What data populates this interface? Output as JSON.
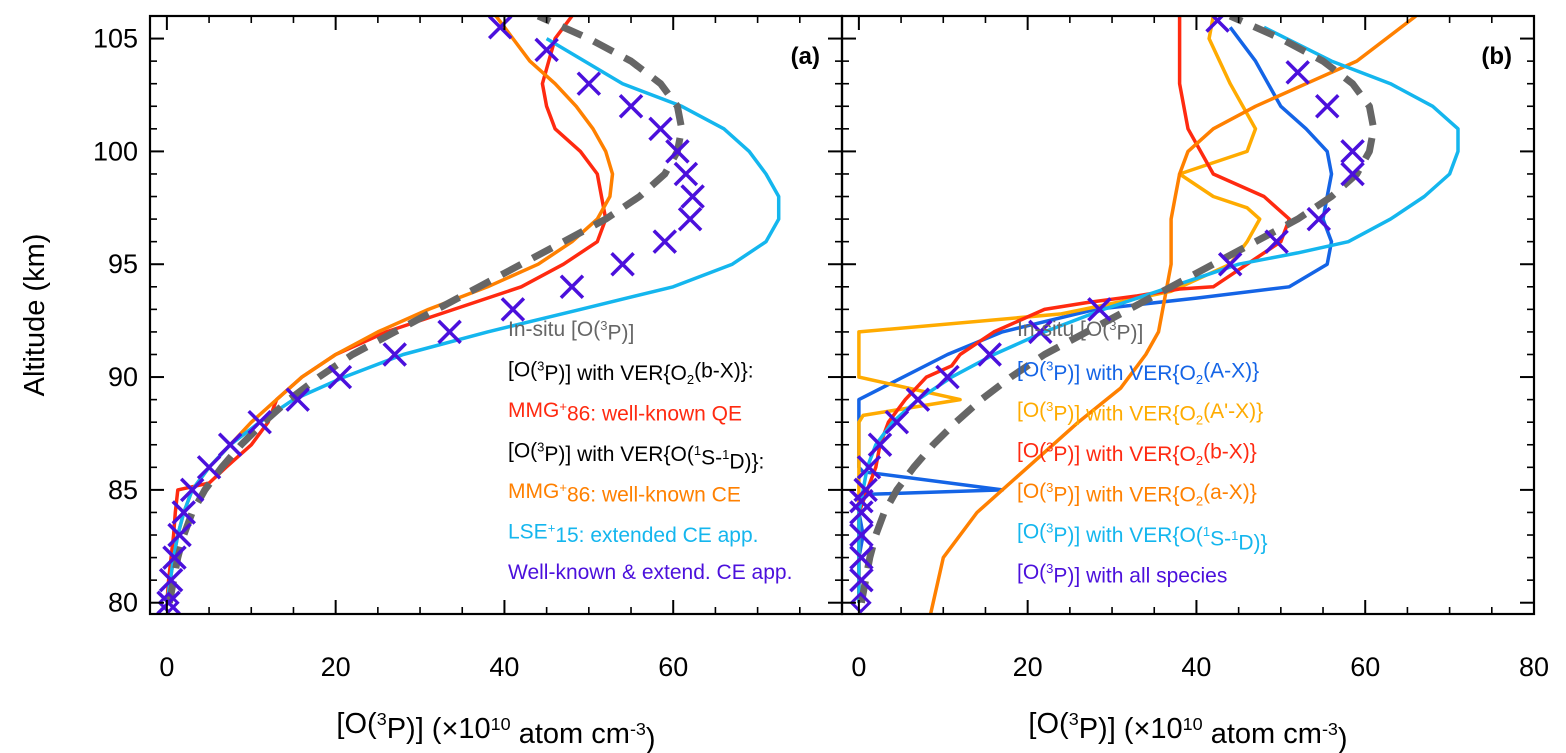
{
  "chart_data": [
    {
      "type": "line",
      "panel_label": "(a)",
      "xlabel": "[O(3P)] (×1010 atom cm-3)",
      "ylabel": "Altitude (km)",
      "xlim": [
        -2,
        80
      ],
      "ylim": [
        79.5,
        106
      ],
      "xticks": [
        "0",
        "20",
        "40",
        "60"
      ],
      "yticks": [
        "80",
        "85",
        "90",
        "95",
        "100",
        "105"
      ],
      "legend_position": "lower-right",
      "legend": [
        {
          "label": "In-situ [O(3P)]",
          "color": "#666666"
        },
        {
          "label": "[O(3P)] with VER{O2(b-X)}:",
          "color": "#000000"
        },
        {
          "label": "MMG+86: well-known QE",
          "color": "#ff2a10"
        },
        {
          "label": "[O(3P)] with VER{O(1S-1D)}:",
          "color": "#000000"
        },
        {
          "label": "MMG+86: well-known CE",
          "color": "#ff8000"
        },
        {
          "label": "LSE+15: extended CE app.",
          "color": "#14b6ee"
        },
        {
          "label": "Well-known & extend. CE app.",
          "color": "#4b10dc"
        }
      ],
      "series": [
        {
          "name": "In-situ [O(3P)]",
          "style": "dashed",
          "color": "#666666",
          "x": [
            0.3,
            0.8,
            1.3,
            2,
            3,
            4.5,
            6.5,
            8.8,
            11.5,
            14.5,
            18,
            22,
            27,
            32,
            37,
            42,
            47,
            52,
            56,
            59,
            60.5,
            61,
            60.5,
            58.5,
            55,
            50,
            44
          ],
          "y": [
            80,
            81,
            82,
            83,
            84,
            85,
            86,
            87,
            88,
            89,
            90,
            91,
            92,
            93,
            94,
            95,
            96,
            97,
            98,
            99,
            100,
            101,
            102,
            103,
            104,
            105,
            106
          ]
        },
        {
          "name": "MMG+86: well-known QE",
          "style": "solid",
          "color": "#ff2a10",
          "x": [
            0,
            0.2,
            0.5,
            0.8,
            1,
            1.3,
            5,
            7,
            10,
            12,
            13,
            16,
            20,
            26,
            34,
            42,
            47,
            51,
            52,
            51.5,
            51,
            49,
            46,
            45,
            44.5,
            46,
            48
          ],
          "y": [
            80,
            81,
            82,
            83,
            84,
            85,
            85.3,
            86,
            87,
            88,
            89,
            90,
            91,
            92,
            93,
            94,
            95,
            96,
            97,
            98,
            99,
            100,
            101,
            102,
            103,
            105,
            106
          ]
        },
        {
          "name": "MMG+86: well-known CE",
          "style": "solid",
          "color": "#ff8000",
          "x": [
            0,
            0.4,
            0.8,
            1.3,
            2,
            3,
            5,
            7.5,
            10,
            13,
            16,
            20,
            25,
            31,
            38,
            44,
            48,
            51,
            52.5,
            52.8,
            52,
            50.5,
            48.5,
            46,
            43,
            39
          ],
          "y": [
            80,
            81,
            82,
            83,
            84,
            85,
            86,
            87,
            88,
            89,
            90,
            91,
            92,
            93,
            94,
            95,
            96,
            97,
            98,
            99,
            100,
            101,
            102,
            103,
            104,
            106
          ]
        },
        {
          "name": "LSE+15: extended CE app.",
          "style": "solid",
          "color": "#14b6ee",
          "x": [
            0,
            0.4,
            0.8,
            1.3,
            2,
            3,
            5,
            7.5,
            11,
            15,
            21,
            28,
            38,
            49,
            60,
            67,
            71,
            72.5,
            72.5,
            71,
            69,
            66,
            61,
            54,
            45
          ],
          "y": [
            80,
            81,
            82,
            83,
            84,
            85,
            86,
            87,
            88,
            89,
            90,
            91,
            92,
            93,
            94,
            95,
            96,
            97,
            98,
            99,
            100,
            101,
            102,
            103,
            105
          ]
        },
        {
          "name": "Well-known & extend. CE app.",
          "style": "markers",
          "marker": "x",
          "color": "#4b10dc",
          "x": [
            0.2,
            0.5,
            0.9,
            1.5,
            2,
            3,
            5,
            7.5,
            11,
            15.5,
            20.5,
            27,
            33.5,
            41,
            48,
            54,
            59,
            62,
            62.3,
            61.5,
            60.5,
            58.5,
            55,
            50,
            45,
            39.5
          ],
          "y": [
            80,
            81,
            82,
            83,
            84,
            85,
            86,
            87,
            88,
            89,
            90,
            91,
            92,
            93,
            94,
            95,
            96,
            97,
            98,
            99,
            100,
            101,
            102,
            103,
            104.5,
            105.5
          ]
        },
        {
          "name": "Well-known & extend. CE app.",
          "style": "markers",
          "marker": "diamond",
          "color": "#4b10dc",
          "x": [
            0.2
          ],
          "y": [
            80
          ]
        }
      ]
    },
    {
      "type": "line",
      "panel_label": "(b)",
      "xlabel": "[O(3P)] (×1010 atom cm-3)",
      "xlim": [
        -2,
        80
      ],
      "ylim": [
        79.5,
        106
      ],
      "xticks": [
        "0",
        "20",
        "40",
        "60",
        "80"
      ],
      "legend_position": "lower-right",
      "legend": [
        {
          "label": "In-situ [O(3P)]",
          "color": "#666666"
        },
        {
          "label": "[O(3P)] with VER{O2(A-X)}",
          "color": "#1464e6"
        },
        {
          "label": "[O(3P)] with VER{O2(A'-X)}",
          "color": "#ffab00"
        },
        {
          "label": "[O(3P)] with VER{O2(b-X)}",
          "color": "#ff2a10"
        },
        {
          "label": "[O(3P)] with VER{O2(a-X)}",
          "color": "#ff8000"
        },
        {
          "label": "[O(3P)] with VER{O(1S-1D)}",
          "color": "#14b6ee"
        },
        {
          "label": "[O(3P)] with all species",
          "color": "#4b10dc"
        }
      ],
      "series": [
        {
          "name": "In-situ [O(3P)]",
          "style": "dashed",
          "color": "#666666",
          "x": [
            0.3,
            0.8,
            1.3,
            2,
            3,
            4.5,
            6.5,
            8.8,
            11.5,
            14.5,
            18,
            22,
            27,
            32,
            37,
            42,
            47,
            52,
            56,
            59,
            60.5,
            61,
            60.5,
            58.5,
            55,
            50,
            44
          ],
          "y": [
            80,
            81,
            82,
            83,
            84,
            85,
            86,
            87,
            88,
            89,
            90,
            91,
            92,
            93,
            94,
            95,
            96,
            97,
            98,
            99,
            100,
            101,
            102,
            103,
            104,
            105,
            106
          ]
        },
        {
          "name": "[O(3P)] with VER{O2(A-X)}",
          "style": "solid",
          "color": "#1464e6",
          "x": [
            0,
            0,
            0,
            0.5,
            0,
            0.8,
            17,
            0.5,
            0,
            0,
            0,
            0,
            10.5,
            17,
            28,
            40,
            51,
            55.5,
            56,
            55,
            55.5,
            56,
            55.5,
            53,
            50,
            47,
            44
          ],
          "y": [
            80,
            81,
            82,
            83,
            84,
            84.8,
            85,
            85.8,
            86,
            87,
            88,
            89,
            91,
            92,
            93,
            93.5,
            94,
            95,
            96,
            97,
            98,
            99,
            100,
            101,
            102,
            104,
            105.5
          ]
        },
        {
          "name": "[O(3P)] with VER{O2(A'-X)}",
          "style": "solid",
          "color": "#ffab00",
          "x": [
            0,
            0,
            0,
            0,
            0,
            0,
            0,
            0.5,
            12,
            0,
            0,
            0,
            24,
            37,
            44,
            46,
            47.5,
            46,
            42,
            38,
            46,
            47,
            44,
            41.5,
            42
          ],
          "y": [
            80,
            82,
            84,
            85,
            86,
            87,
            88,
            88.3,
            89,
            90,
            91,
            92,
            92.8,
            93.8,
            95,
            96,
            97,
            97.5,
            98,
            99,
            100,
            101,
            103,
            105,
            106
          ]
        },
        {
          "name": "[O(3P)] with VER{O2(b-X)}",
          "style": "solid",
          "color": "#ff2a10",
          "x": [
            0,
            0,
            0,
            0,
            0,
            0.5,
            1,
            2,
            2.5,
            3.5,
            5.5,
            8,
            11,
            12,
            16,
            22,
            27,
            33,
            38,
            42,
            46,
            50,
            51,
            48,
            42,
            39,
            38,
            38
          ],
          "y": [
            80,
            81,
            82,
            83,
            84,
            84.5,
            85,
            86,
            87,
            88,
            89,
            90,
            90.5,
            91,
            92,
            93,
            93.3,
            93.6,
            93.9,
            94,
            95,
            96,
            97,
            98,
            99,
            101,
            103,
            106
          ]
        },
        {
          "name": "[O(3P)] with VER{O2(a-X)}",
          "style": "solid",
          "color": "#ff8000",
          "x": [
            8.5,
            10,
            14,
            20,
            26,
            31,
            34,
            35.5,
            36,
            36.5,
            37,
            37,
            37,
            37.5,
            38,
            39,
            42,
            47,
            53,
            59,
            66
          ],
          "y": [
            79.5,
            82,
            84,
            86,
            88,
            89.5,
            91,
            92,
            93,
            94,
            95,
            96,
            97,
            98,
            99,
            100,
            101,
            102,
            103,
            104,
            106
          ]
        },
        {
          "name": "[O(3P)] with VER{O(1S-1D)}",
          "style": "solid",
          "color": "#14b6ee",
          "x": [
            0,
            0,
            0,
            0,
            0,
            0.5,
            1,
            2,
            4,
            7,
            11,
            16,
            22,
            29,
            37,
            45,
            52,
            58,
            63,
            67,
            70,
            71,
            71,
            68,
            63,
            56,
            48
          ],
          "y": [
            80,
            81,
            82,
            83,
            84,
            85,
            86,
            87,
            88,
            89,
            90,
            91,
            92,
            93,
            94,
            95,
            95.5,
            96,
            97,
            98,
            99,
            100,
            101,
            102,
            103,
            104,
            105.5
          ]
        },
        {
          "name": "[O(3P)] with all species",
          "style": "markers",
          "marker": "x",
          "color": "#4b10dc",
          "x": [
            0.3,
            0.3,
            0.3,
            0.3,
            0.3,
            0.8,
            1.2,
            2.5,
            4.5,
            7,
            10.5,
            15.5,
            21.5,
            28.5,
            44,
            49.5,
            54.5,
            58.5,
            58.5,
            55.5,
            52,
            42.5
          ],
          "y": [
            81,
            82,
            83,
            84,
            84.5,
            85,
            86,
            87,
            88,
            89,
            90,
            91,
            92,
            93,
            95,
            96,
            97,
            99,
            100,
            102,
            103.5,
            105.8
          ]
        },
        {
          "name": "[O(3P)] with all species",
          "style": "markers",
          "marker": "diamond",
          "color": "#4b10dc",
          "x": [
            0.2
          ],
          "y": [
            80
          ]
        }
      ]
    }
  ]
}
